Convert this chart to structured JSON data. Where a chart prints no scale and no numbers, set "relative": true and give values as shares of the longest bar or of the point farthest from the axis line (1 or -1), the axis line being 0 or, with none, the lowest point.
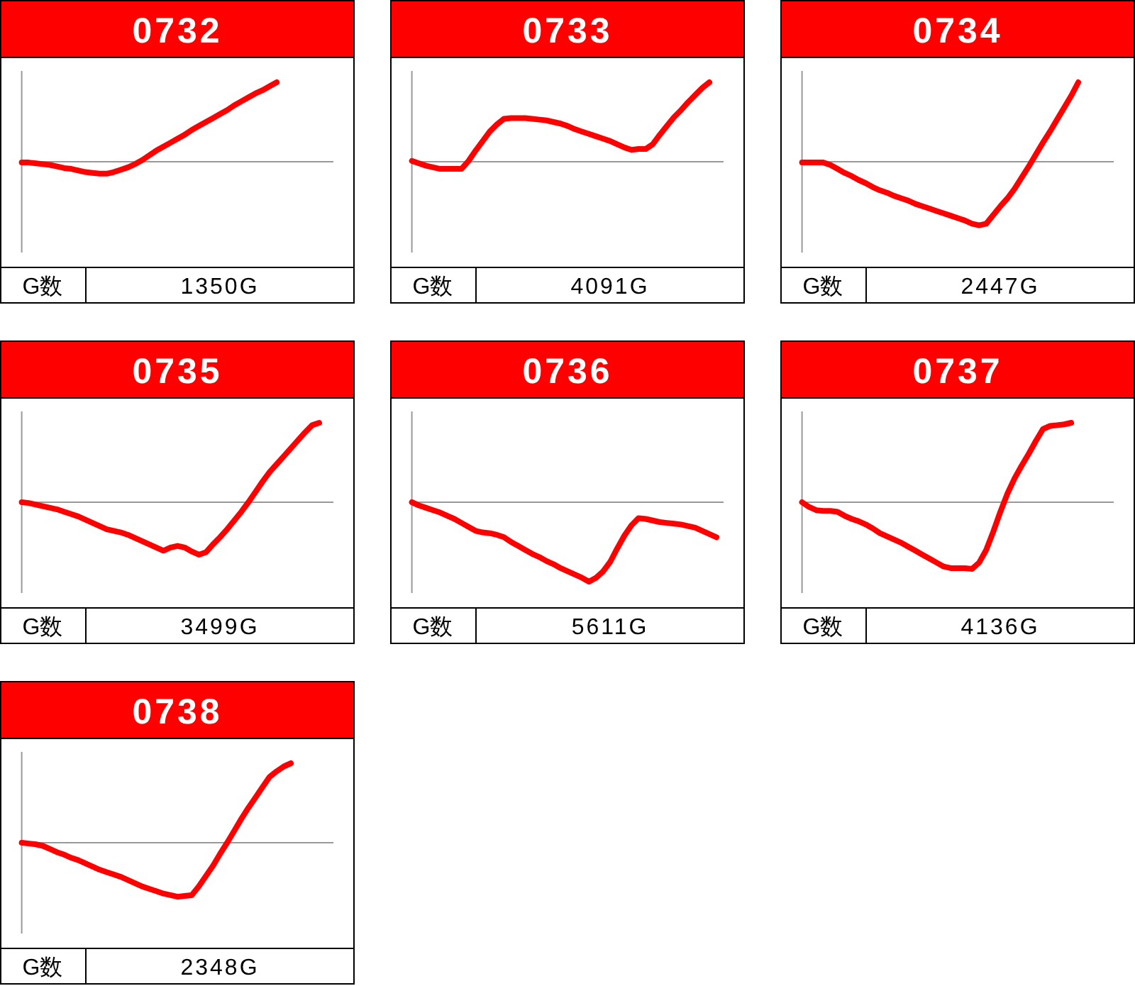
{
  "chart_data": [
    {
      "type": "line",
      "title": "0732",
      "relative": true,
      "color": "#ff0000",
      "annotations": [
        "G数",
        "1350G"
      ],
      "categories": [
        null,
        null,
        null,
        null,
        null,
        null,
        null,
        null,
        null,
        null,
        null,
        null,
        null,
        null,
        null,
        null,
        null,
        null,
        null,
        null,
        null,
        null,
        null,
        null,
        null,
        null,
        null,
        null,
        null,
        null,
        null,
        null,
        null,
        null,
        null,
        null,
        null,
        null,
        null,
        null,
        null,
        null,
        null,
        null,
        null
      ],
      "values": [
        -0.01,
        -0.01,
        -0.02,
        -0.03,
        -0.04,
        -0.06,
        -0.08,
        -0.09,
        -0.11,
        -0.13,
        -0.14,
        -0.15,
        -0.15,
        -0.13,
        -0.1,
        -0.07,
        -0.03,
        0.02,
        0.08,
        0.14,
        0.19,
        0.24,
        0.29,
        0.34,
        0.4,
        0.45,
        0.5,
        0.55,
        0.6,
        0.65,
        0.71,
        0.76,
        0.81,
        0.86,
        0.9,
        0.95,
        1,
        null,
        null,
        null,
        null,
        null,
        null,
        null,
        null
      ]
    },
    {
      "type": "line",
      "title": "0733",
      "relative": true,
      "color": "#ff0000",
      "annotations": [
        "G数",
        "4091G"
      ],
      "categories": [
        null,
        null,
        null,
        null,
        null,
        null,
        null,
        null,
        null,
        null,
        null,
        null,
        null,
        null,
        null,
        null,
        null,
        null,
        null,
        null,
        null,
        null,
        null,
        null,
        null,
        null,
        null,
        null,
        null,
        null,
        null,
        null,
        null,
        null,
        null,
        null,
        null,
        null,
        null,
        null,
        null,
        null,
        null,
        null,
        null
      ],
      "values": [
        0.01,
        -0.02,
        -0.05,
        -0.07,
        -0.09,
        -0.09,
        -0.09,
        -0.09,
        0.01,
        0.14,
        0.26,
        0.38,
        0.47,
        0.54,
        0.55,
        0.55,
        0.55,
        0.54,
        0.53,
        0.52,
        0.5,
        0.48,
        0.45,
        0.41,
        0.38,
        0.35,
        0.32,
        0.29,
        0.26,
        0.22,
        0.18,
        0.15,
        0.16,
        0.16,
        0.22,
        0.34,
        0.45,
        0.56,
        0.65,
        0.75,
        0.84,
        0.93,
        1,
        null,
        null
      ]
    },
    {
      "type": "line",
      "title": "0734",
      "relative": true,
      "color": "#ff0000",
      "annotations": [
        "G数",
        "2447G"
      ],
      "categories": [
        null,
        null,
        null,
        null,
        null,
        null,
        null,
        null,
        null,
        null,
        null,
        null,
        null,
        null,
        null,
        null,
        null,
        null,
        null,
        null,
        null,
        null,
        null,
        null,
        null,
        null,
        null,
        null,
        null,
        null,
        null,
        null,
        null,
        null,
        null,
        null,
        null,
        null,
        null,
        null,
        null,
        null,
        null,
        null,
        null
      ],
      "values": [
        -0.01,
        -0.01,
        -0.01,
        -0.01,
        -0.04,
        -0.09,
        -0.14,
        -0.18,
        -0.23,
        -0.27,
        -0.32,
        -0.36,
        -0.39,
        -0.43,
        -0.46,
        -0.49,
        -0.53,
        -0.56,
        -0.59,
        -0.62,
        -0.65,
        -0.68,
        -0.71,
        -0.74,
        -0.78,
        -0.8,
        -0.78,
        -0.67,
        -0.56,
        -0.46,
        -0.34,
        -0.2,
        -0.06,
        0.09,
        0.24,
        0.38,
        0.53,
        0.68,
        0.83,
        1,
        null,
        null,
        null,
        null,
        null
      ]
    },
    {
      "type": "line",
      "title": "0735",
      "relative": true,
      "color": "#ff0000",
      "annotations": [
        "G数",
        "3499G"
      ],
      "categories": [
        null,
        null,
        null,
        null,
        null,
        null,
        null,
        null,
        null,
        null,
        null,
        null,
        null,
        null,
        null,
        null,
        null,
        null,
        null,
        null,
        null,
        null,
        null,
        null,
        null,
        null,
        null,
        null,
        null,
        null,
        null,
        null,
        null,
        null,
        null,
        null,
        null,
        null,
        null,
        null,
        null,
        null,
        null,
        null,
        null
      ],
      "values": [
        0,
        -0.01,
        -0.03,
        -0.05,
        -0.07,
        -0.09,
        -0.12,
        -0.15,
        -0.18,
        -0.22,
        -0.26,
        -0.3,
        -0.34,
        -0.36,
        -0.38,
        -0.41,
        -0.45,
        -0.49,
        -0.53,
        -0.57,
        -0.61,
        -0.57,
        -0.55,
        -0.57,
        -0.62,
        -0.66,
        -0.63,
        -0.53,
        -0.44,
        -0.34,
        -0.23,
        -0.12,
        0,
        0.13,
        0.26,
        0.38,
        0.48,
        0.58,
        0.68,
        0.78,
        0.88,
        0.97,
        1,
        null,
        null
      ]
    },
    {
      "type": "line",
      "title": "0736",
      "relative": true,
      "color": "#ff0000",
      "annotations": [
        "G数",
        "5611G"
      ],
      "categories": [
        null,
        null,
        null,
        null,
        null,
        null,
        null,
        null,
        null,
        null,
        null,
        null,
        null,
        null,
        null,
        null,
        null,
        null,
        null,
        null,
        null,
        null,
        null,
        null,
        null,
        null,
        null,
        null,
        null,
        null,
        null,
        null,
        null,
        null,
        null,
        null,
        null,
        null,
        null,
        null,
        null,
        null,
        null,
        null,
        null
      ],
      "values": [
        0,
        -0.04,
        -0.07,
        -0.1,
        -0.13,
        -0.17,
        -0.21,
        -0.26,
        -0.31,
        -0.36,
        -0.38,
        -0.39,
        -0.41,
        -0.44,
        -0.5,
        -0.55,
        -0.6,
        -0.65,
        -0.69,
        -0.74,
        -0.78,
        -0.83,
        -0.87,
        -0.91,
        -0.95,
        -1,
        -0.95,
        -0.87,
        -0.75,
        -0.58,
        -0.42,
        -0.29,
        -0.2,
        -0.21,
        -0.23,
        -0.25,
        -0.26,
        -0.27,
        -0.28,
        -0.3,
        -0.32,
        -0.36,
        -0.4,
        -0.44,
        null
      ]
    },
    {
      "type": "line",
      "title": "0737",
      "relative": true,
      "color": "#ff0000",
      "annotations": [
        "G数",
        "4136G"
      ],
      "categories": [
        null,
        null,
        null,
        null,
        null,
        null,
        null,
        null,
        null,
        null,
        null,
        null,
        null,
        null,
        null,
        null,
        null,
        null,
        null,
        null,
        null,
        null,
        null,
        null,
        null,
        null,
        null,
        null,
        null,
        null,
        null,
        null,
        null,
        null,
        null,
        null,
        null,
        null,
        null,
        null,
        null,
        null,
        null,
        null,
        null
      ],
      "values": [
        0,
        -0.06,
        -0.1,
        -0.11,
        -0.11,
        -0.12,
        -0.17,
        -0.21,
        -0.24,
        -0.28,
        -0.33,
        -0.39,
        -0.43,
        -0.47,
        -0.51,
        -0.56,
        -0.61,
        -0.66,
        -0.71,
        -0.76,
        -0.81,
        -0.83,
        -0.83,
        -0.83,
        -0.84,
        -0.76,
        -0.6,
        -0.37,
        -0.12,
        0.11,
        0.3,
        0.46,
        0.61,
        0.77,
        0.92,
        0.96,
        0.97,
        0.98,
        1,
        null,
        null,
        null,
        null,
        null,
        null
      ]
    },
    {
      "type": "line",
      "title": "0738",
      "relative": true,
      "color": "#ff0000",
      "annotations": [
        "G数",
        "2348G"
      ],
      "categories": [
        null,
        null,
        null,
        null,
        null,
        null,
        null,
        null,
        null,
        null,
        null,
        null,
        null,
        null,
        null,
        null,
        null,
        null,
        null,
        null,
        null,
        null,
        null,
        null,
        null,
        null,
        null,
        null,
        null,
        null,
        null,
        null,
        null,
        null,
        null,
        null,
        null,
        null,
        null,
        null,
        null,
        null,
        null,
        null,
        null
      ],
      "values": [
        0,
        -0.01,
        -0.02,
        -0.04,
        -0.08,
        -0.12,
        -0.15,
        -0.19,
        -0.22,
        -0.26,
        -0.3,
        -0.34,
        -0.37,
        -0.4,
        -0.43,
        -0.47,
        -0.51,
        -0.55,
        -0.58,
        -0.61,
        -0.64,
        -0.66,
        -0.68,
        -0.67,
        -0.66,
        -0.55,
        -0.42,
        -0.29,
        -0.14,
        0,
        0.15,
        0.3,
        0.44,
        0.57,
        0.7,
        0.83,
        0.9,
        0.96,
        1,
        null,
        null,
        null,
        null,
        null,
        null
      ]
    }
  ]
}
